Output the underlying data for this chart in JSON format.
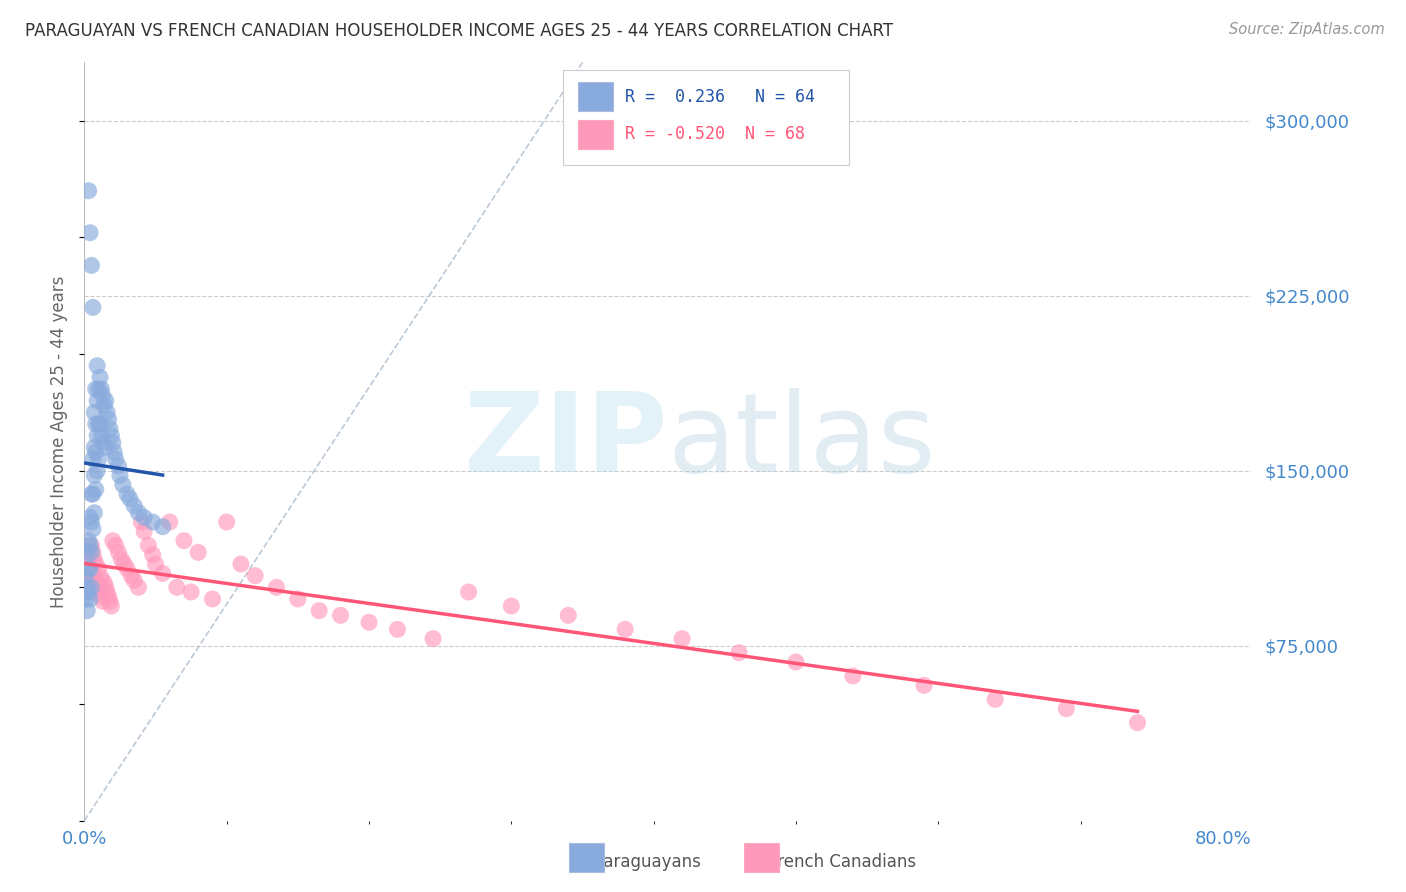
{
  "title": "PARAGUAYAN VS FRENCH CANADIAN HOUSEHOLDER INCOME AGES 25 - 44 YEARS CORRELATION CHART",
  "source": "Source: ZipAtlas.com",
  "ylabel": "Householder Income Ages 25 - 44 years",
  "ylim": [
    0,
    325000
  ],
  "xlim": [
    0.0,
    0.82
  ],
  "ytick_values": [
    75000,
    150000,
    225000,
    300000
  ],
  "ytick_labels": [
    "$75,000",
    "$150,000",
    "$225,000",
    "$300,000"
  ],
  "xtick_left_label": "0.0%",
  "xtick_right_label": "80.0%",
  "blue_color": "#88AADD",
  "pink_color": "#FF99BB",
  "blue_line_color": "#2255AA",
  "pink_line_color": "#FF5577",
  "ref_line_color": "#AABBCC",
  "grid_color": "#CCCCCC",
  "title_color": "#333333",
  "axis_label_color": "#666666",
  "tick_label_color": "#4488CC",
  "legend_R_blue": " 0.236",
  "legend_N_blue": "64",
  "legend_R_pink": "-0.520",
  "legend_N_pink": "68",
  "blue_scatter_x": [
    0.001,
    0.001,
    0.002,
    0.002,
    0.002,
    0.003,
    0.003,
    0.003,
    0.004,
    0.004,
    0.004,
    0.004,
    0.005,
    0.005,
    0.005,
    0.005,
    0.006,
    0.006,
    0.006,
    0.007,
    0.007,
    0.007,
    0.007,
    0.008,
    0.008,
    0.008,
    0.008,
    0.009,
    0.009,
    0.009,
    0.009,
    0.01,
    0.01,
    0.01,
    0.011,
    0.011,
    0.012,
    0.012,
    0.013,
    0.013,
    0.014,
    0.015,
    0.015,
    0.016,
    0.017,
    0.018,
    0.019,
    0.02,
    0.021,
    0.022,
    0.024,
    0.025,
    0.027,
    0.03,
    0.032,
    0.035,
    0.038,
    0.042,
    0.048,
    0.055,
    0.003,
    0.004,
    0.005,
    0.006
  ],
  "blue_scatter_y": [
    105000,
    95000,
    115000,
    100000,
    90000,
    120000,
    108000,
    98000,
    130000,
    118000,
    108000,
    95000,
    140000,
    128000,
    115000,
    100000,
    155000,
    140000,
    125000,
    175000,
    160000,
    148000,
    132000,
    185000,
    170000,
    158000,
    142000,
    195000,
    180000,
    165000,
    150000,
    185000,
    170000,
    155000,
    190000,
    170000,
    185000,
    165000,
    182000,
    162000,
    178000,
    180000,
    160000,
    175000,
    172000,
    168000,
    165000,
    162000,
    158000,
    155000,
    152000,
    148000,
    144000,
    140000,
    138000,
    135000,
    132000,
    130000,
    128000,
    126000,
    270000,
    252000,
    238000,
    220000
  ],
  "pink_scatter_x": [
    0.001,
    0.002,
    0.003,
    0.004,
    0.005,
    0.005,
    0.006,
    0.006,
    0.007,
    0.007,
    0.008,
    0.008,
    0.009,
    0.01,
    0.01,
    0.011,
    0.012,
    0.012,
    0.013,
    0.014,
    0.015,
    0.016,
    0.017,
    0.018,
    0.019,
    0.02,
    0.022,
    0.024,
    0.026,
    0.028,
    0.03,
    0.033,
    0.035,
    0.038,
    0.04,
    0.042,
    0.045,
    0.048,
    0.05,
    0.055,
    0.06,
    0.065,
    0.07,
    0.075,
    0.08,
    0.09,
    0.1,
    0.11,
    0.12,
    0.135,
    0.15,
    0.165,
    0.18,
    0.2,
    0.22,
    0.245,
    0.27,
    0.3,
    0.34,
    0.38,
    0.42,
    0.46,
    0.5,
    0.54,
    0.59,
    0.64,
    0.69,
    0.74
  ],
  "pink_scatter_y": [
    115000,
    112000,
    110000,
    108000,
    106000,
    118000,
    105000,
    115000,
    104000,
    112000,
    103000,
    110000,
    102000,
    100000,
    108000,
    98000,
    96000,
    104000,
    94000,
    102000,
    100000,
    98000,
    96000,
    94000,
    92000,
    120000,
    118000,
    115000,
    112000,
    110000,
    108000,
    105000,
    103000,
    100000,
    128000,
    124000,
    118000,
    114000,
    110000,
    106000,
    128000,
    100000,
    120000,
    98000,
    115000,
    95000,
    128000,
    110000,
    105000,
    100000,
    95000,
    90000,
    88000,
    85000,
    82000,
    78000,
    98000,
    92000,
    88000,
    82000,
    78000,
    72000,
    68000,
    62000,
    58000,
    52000,
    48000,
    42000
  ]
}
